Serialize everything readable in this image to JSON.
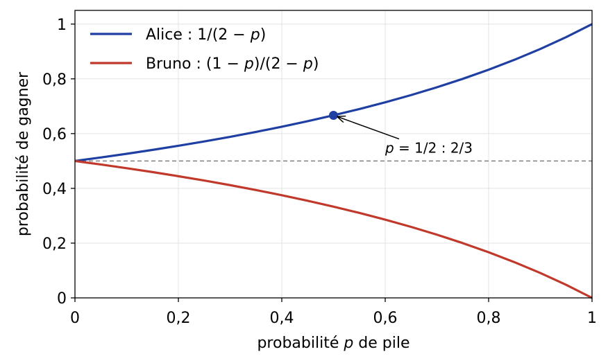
{
  "chart_data": {
    "type": "line",
    "xlabel": "probabilité p de pile",
    "xlabel_parts": [
      "probabilité ",
      "p",
      " de pile"
    ],
    "ylabel": "probabilité de gagner",
    "xlim": [
      0,
      1
    ],
    "ylim": [
      0,
      1.05
    ],
    "xticks": [
      0,
      0.2,
      0.4,
      0.6,
      0.8,
      1
    ],
    "xtick_labels": [
      "0",
      "0,2",
      "0,4",
      "0,6",
      "0,8",
      "1"
    ],
    "yticks": [
      0,
      0.2,
      0.4,
      0.6,
      0.8,
      1
    ],
    "ytick_labels": [
      "0",
      "0,2",
      "0,4",
      "0,6",
      "0,8",
      "1"
    ],
    "grid": true,
    "legend_position": "top-left",
    "x": [
      0,
      0.05,
      0.1,
      0.15,
      0.2,
      0.25,
      0.3,
      0.35,
      0.4,
      0.45,
      0.5,
      0.55,
      0.6,
      0.65,
      0.7,
      0.75,
      0.8,
      0.85,
      0.9,
      0.95,
      1
    ],
    "series": [
      {
        "name": "Alice : 1/(2 − p)",
        "name_parts": [
          "Alice : 1/(2 − ",
          "p",
          ")"
        ],
        "color": "#1f3fa3",
        "values": [
          0.5,
          0.5128,
          0.5263,
          0.5405,
          0.5556,
          0.5714,
          0.5882,
          0.6061,
          0.625,
          0.6452,
          0.6667,
          0.6897,
          0.7143,
          0.7407,
          0.7692,
          0.8,
          0.8333,
          0.8696,
          0.9091,
          0.9524,
          1
        ]
      },
      {
        "name": "Bruno : (1 − p)/(2 − p)",
        "name_parts": [
          "Bruno : (1 − ",
          "p",
          ")/(2 − ",
          "p",
          ")"
        ],
        "color": "#c0392b",
        "values": [
          0.5,
          0.4872,
          0.4737,
          0.4595,
          0.4444,
          0.4286,
          0.4118,
          0.3939,
          0.375,
          0.3548,
          0.3333,
          0.3103,
          0.2857,
          0.2593,
          0.2308,
          0.2,
          0.1667,
          0.1304,
          0.0909,
          0.0476,
          0
        ]
      }
    ],
    "reference_line": {
      "y": 0.5,
      "style": "dashed",
      "color": "#7f7f7f"
    },
    "highlight_point": {
      "x": 0.5,
      "y": 0.6667,
      "color": "#1f3fa3"
    },
    "annotation": {
      "text": "p = 1/2 : 2/3",
      "text_parts": [
        "p",
        " = 1/2 : 2/3"
      ],
      "x": 0.6,
      "y": 0.53,
      "arrow_to": {
        "x": 0.5,
        "y": 0.6667
      }
    }
  }
}
